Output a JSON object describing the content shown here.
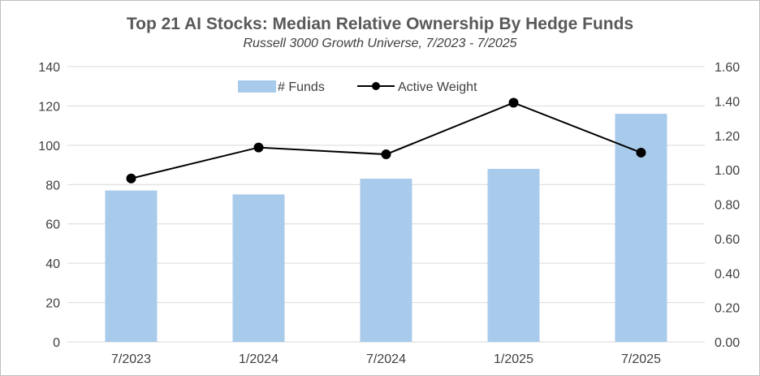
{
  "chart_data": {
    "type": "bar",
    "title": "Top 21 AI Stocks: Median Relative Ownership By Hedge Funds",
    "subtitle": "Russell 3000 Growth Universe, 7/2023 - 7/2025",
    "categories": [
      "7/2023",
      "1/2024",
      "7/2024",
      "1/2025",
      "7/2025"
    ],
    "series": [
      {
        "name": "# Funds",
        "type": "bar",
        "axis": "left",
        "color": "#a9cbeb",
        "values": [
          77,
          75,
          83,
          88,
          116
        ]
      },
      {
        "name": "Active Weight",
        "type": "line",
        "axis": "right",
        "color": "#000000",
        "values": [
          0.95,
          1.13,
          1.09,
          1.39,
          1.1
        ]
      }
    ],
    "y_left": {
      "range": [
        0,
        140
      ],
      "ticks": [
        "0",
        "20",
        "40",
        "60",
        "80",
        "100",
        "120",
        "140"
      ]
    },
    "y_right": {
      "range": [
        0,
        1.6
      ],
      "ticks": [
        "0.00",
        "0.20",
        "0.40",
        "0.60",
        "0.80",
        "1.00",
        "1.20",
        "1.40",
        "1.60"
      ]
    },
    "grid": true,
    "legend_position": "top-center"
  }
}
